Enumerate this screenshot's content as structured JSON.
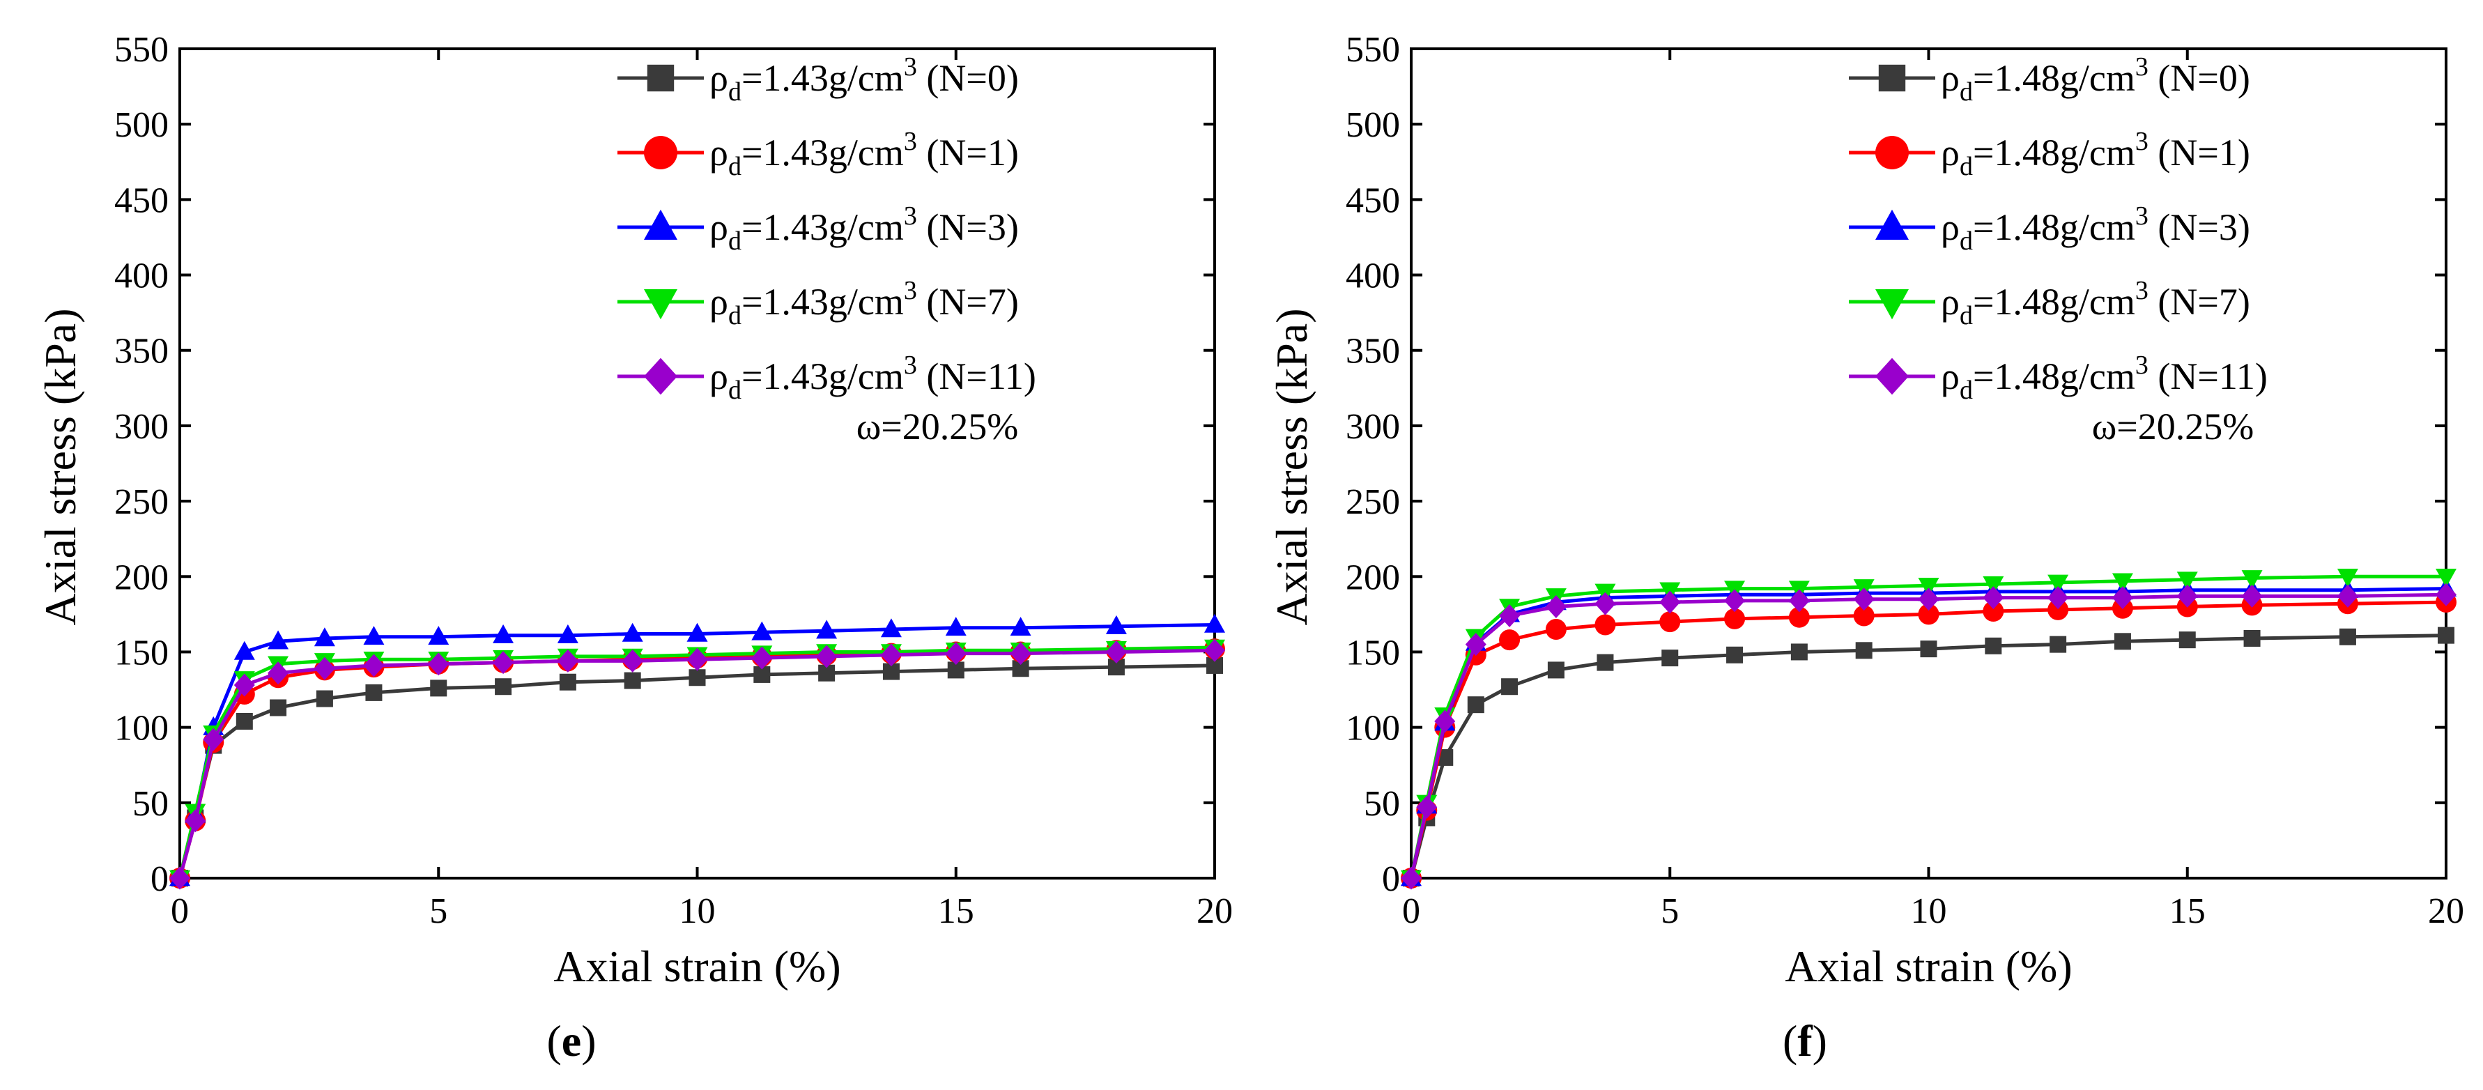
{
  "chart_data": [
    {
      "type": "line",
      "panel_label": "e",
      "xlabel": "Axial strain (%)",
      "ylabel": "Axial stress (kPa)",
      "xlim": [
        0,
        20
      ],
      "ylim": [
        0,
        550
      ],
      "xticks": [
        0,
        5,
        10,
        15,
        20
      ],
      "yticks": [
        0,
        50,
        100,
        150,
        200,
        250,
        300,
        350,
        400,
        450,
        500,
        550
      ],
      "grid": false,
      "legend_position": "top-right",
      "annotation": "ω=20.25%",
      "x": [
        0,
        0.3,
        0.65,
        1.25,
        1.9,
        2.8,
        3.75,
        5.0,
        6.25,
        7.5,
        8.75,
        10.0,
        11.25,
        12.5,
        13.75,
        15.0,
        16.25,
        18.1,
        20.0
      ],
      "series": [
        {
          "name": "N=0",
          "density_text": "1.43g/cm",
          "count_text": "(N=0)",
          "color": "#3a3a3a",
          "marker": "square",
          "values": [
            0,
            40,
            88,
            104,
            113,
            119,
            123,
            126,
            127,
            130,
            131,
            133,
            135,
            136,
            137,
            138,
            139,
            140,
            141
          ]
        },
        {
          "name": "N=1",
          "density_text": "1.43g/cm",
          "count_text": "(N=1)",
          "color": "#ff0000",
          "marker": "circle",
          "values": [
            0,
            38,
            90,
            122,
            133,
            138,
            140,
            142,
            143,
            144,
            145,
            146,
            147,
            148,
            149,
            150,
            150,
            151,
            152
          ]
        },
        {
          "name": "N=3",
          "density_text": "1.43g/cm",
          "count_text": "(N=3)",
          "color": "#0000ff",
          "marker": "triangle-up",
          "values": [
            0,
            42,
            100,
            150,
            157,
            159,
            160,
            160,
            161,
            161,
            162,
            162,
            163,
            164,
            165,
            166,
            166,
            167,
            168
          ]
        },
        {
          "name": "N=7",
          "density_text": "1.43g/cm",
          "count_text": "(N=7)",
          "color": "#00e000",
          "marker": "triangle-down",
          "values": [
            0,
            44,
            96,
            132,
            142,
            144,
            145,
            145,
            146,
            147,
            147,
            148,
            149,
            150,
            150,
            151,
            151,
            152,
            153
          ]
        },
        {
          "name": "N=11",
          "density_text": "1.43g/cm",
          "count_text": "(N=11)",
          "color": "#9900cc",
          "marker": "diamond",
          "values": [
            0,
            38,
            92,
            128,
            136,
            139,
            141,
            142,
            143,
            144,
            144,
            145,
            146,
            147,
            148,
            149,
            149,
            150,
            151
          ]
        }
      ]
    },
    {
      "type": "line",
      "panel_label": "f",
      "xlabel": "Axial strain (%)",
      "ylabel": "Axial stress (kPa)",
      "xlim": [
        0,
        20
      ],
      "ylim": [
        0,
        550
      ],
      "xticks": [
        0,
        5,
        10,
        15,
        20
      ],
      "yticks": [
        0,
        50,
        100,
        150,
        200,
        250,
        300,
        350,
        400,
        450,
        500,
        550
      ],
      "grid": false,
      "legend_position": "top-right",
      "annotation": "ω=20.25%",
      "x": [
        0,
        0.3,
        0.65,
        1.25,
        1.9,
        2.8,
        3.75,
        5.0,
        6.25,
        7.5,
        8.75,
        10.0,
        11.25,
        12.5,
        13.75,
        15.0,
        16.25,
        18.1,
        20.0
      ],
      "series": [
        {
          "name": "N=0",
          "density_text": "1.48g/cm",
          "count_text": "(N=0)",
          "color": "#3a3a3a",
          "marker": "square",
          "values": [
            0,
            40,
            80,
            115,
            127,
            138,
            143,
            146,
            148,
            150,
            151,
            152,
            154,
            155,
            157,
            158,
            159,
            160,
            161
          ]
        },
        {
          "name": "N=1",
          "density_text": "1.48g/cm",
          "count_text": "(N=1)",
          "color": "#ff0000",
          "marker": "circle",
          "values": [
            0,
            45,
            100,
            148,
            158,
            165,
            168,
            170,
            172,
            173,
            174,
            175,
            177,
            178,
            179,
            180,
            181,
            182,
            183
          ]
        },
        {
          "name": "N=3",
          "density_text": "1.48g/cm",
          "count_text": "(N=3)",
          "color": "#0000ff",
          "marker": "triangle-up",
          "values": [
            0,
            48,
            103,
            156,
            175,
            183,
            186,
            187,
            188,
            188,
            189,
            189,
            190,
            190,
            190,
            191,
            191,
            191,
            192
          ]
        },
        {
          "name": "N=7",
          "density_text": "1.48g/cm",
          "count_text": "(N=7)",
          "color": "#00e000",
          "marker": "triangle-down",
          "values": [
            0,
            50,
            108,
            160,
            180,
            187,
            190,
            191,
            192,
            192,
            193,
            194,
            195,
            196,
            197,
            198,
            199,
            200,
            200
          ]
        },
        {
          "name": "N=11",
          "density_text": "1.48g/cm",
          "count_text": "(N=11)",
          "color": "#9900cc",
          "marker": "diamond",
          "values": [
            0,
            47,
            104,
            155,
            174,
            180,
            182,
            183,
            184,
            184,
            185,
            185,
            186,
            186,
            186,
            187,
            187,
            187,
            188
          ]
        }
      ]
    }
  ]
}
